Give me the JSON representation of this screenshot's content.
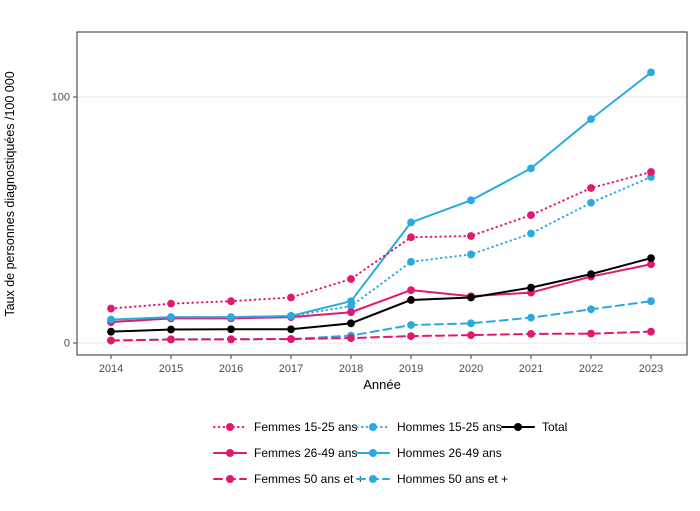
{
  "chart_data": {
    "type": "line",
    "title": "",
    "xlabel": "Année",
    "ylabel": "Taux de personnes diagnostiquées /100 000",
    "x": [
      2014,
      2015,
      2016,
      2017,
      2018,
      2019,
      2020,
      2021,
      2022,
      2023
    ],
    "yticks": [
      0,
      100
    ],
    "ylim": [
      -5,
      126
    ],
    "grid": "y-major-only",
    "colors": {
      "femmes": "#E2186F",
      "hommes": "#29ABE2",
      "total": "#000000",
      "tick_label": "#4D4D4D",
      "panel_border": "#404040",
      "gridline": "#E8E8E8"
    },
    "series": [
      {
        "name": "Femmes 15-25 ans",
        "color": "#E2186F",
        "style": "dotted",
        "values": [
          14,
          16,
          17,
          18.5,
          26,
          43,
          43.5,
          52,
          63,
          69.5
        ]
      },
      {
        "name": "Hommes 15-25 ans",
        "color": "#29ABE2",
        "style": "dotted",
        "values": [
          9.5,
          10.5,
          10.5,
          11,
          15,
          33,
          36,
          44.5,
          57,
          67.5
        ]
      },
      {
        "name": "Femmes 26-49 ans",
        "color": "#E2186F",
        "style": "solid",
        "values": [
          8.5,
          10,
          10,
          10.5,
          12.5,
          21.5,
          19,
          20.5,
          27,
          32
        ]
      },
      {
        "name": "Hommes 26-49 ans",
        "color": "#29ABE2",
        "style": "solid",
        "values": [
          9.5,
          10.5,
          10.5,
          11,
          17,
          49,
          58,
          71,
          91,
          110
        ]
      },
      {
        "name": "Femmes 50 ans et +",
        "color": "#E2186F",
        "style": "dashed",
        "values": [
          1,
          1.4,
          1.5,
          1.6,
          2,
          2.8,
          3.2,
          3.7,
          3.8,
          4.6
        ]
      },
      {
        "name": "Hommes 50 ans et +",
        "color": "#29ABE2",
        "style": "dashed",
        "values": [
          1,
          1.5,
          1.5,
          1.6,
          3,
          7.3,
          8,
          10.3,
          13.7,
          17
        ]
      },
      {
        "name": "Total",
        "color": "#000000",
        "style": "solid",
        "values": [
          4.6,
          5.5,
          5.6,
          5.6,
          8,
          17.5,
          18.5,
          22.5,
          28,
          34.5
        ]
      }
    ],
    "legend": {
      "position": "bottom",
      "entries": [
        "Femmes 15-25 ans",
        "Hommes 15-25 ans",
        "Total",
        "Femmes 26-49 ans",
        "Hommes 26-49 ans",
        "Femmes 50 ans et +",
        "Hommes 50 ans et +"
      ]
    }
  }
}
